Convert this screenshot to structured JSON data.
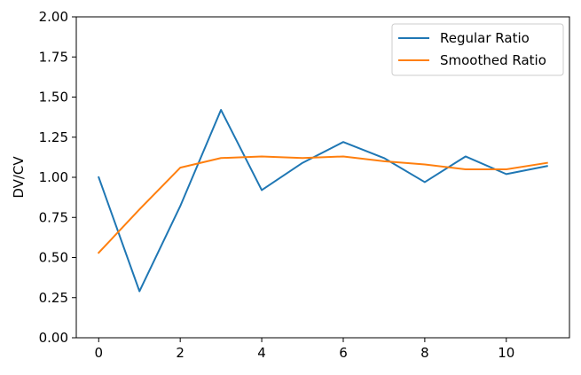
{
  "chart_data": {
    "type": "line",
    "title": "",
    "xlabel": "",
    "ylabel": "DV/CV",
    "x": [
      0,
      1,
      2,
      3,
      4,
      5,
      6,
      7,
      8,
      9,
      10,
      11
    ],
    "xlim": [
      -0.55,
      11.55
    ],
    "ylim": [
      0,
      2
    ],
    "xticks": [
      0,
      2,
      4,
      6,
      8,
      10
    ],
    "yticks": [
      0,
      0.25,
      0.5,
      0.75,
      1.0,
      1.25,
      1.5,
      1.75,
      2.0
    ],
    "xtick_labels": [
      "0",
      "2",
      "4",
      "6",
      "8",
      "10"
    ],
    "ytick_labels": [
      "0.00",
      "0.25",
      "0.50",
      "0.75",
      "1.00",
      "1.25",
      "1.50",
      "1.75",
      "2.00"
    ],
    "grid": false,
    "legend_position": "top-right",
    "series": [
      {
        "name": "Regular Ratio",
        "color": "#1f77b4",
        "values": [
          1.0,
          0.29,
          0.82,
          1.42,
          0.92,
          1.09,
          1.22,
          1.12,
          0.97,
          1.13,
          1.02,
          1.07
        ]
      },
      {
        "name": "Smoothed Ratio",
        "color": "#ff7f0e",
        "values": [
          0.53,
          0.8,
          1.06,
          1.12,
          1.13,
          1.12,
          1.13,
          1.1,
          1.08,
          1.05,
          1.05,
          1.09
        ]
      }
    ]
  }
}
